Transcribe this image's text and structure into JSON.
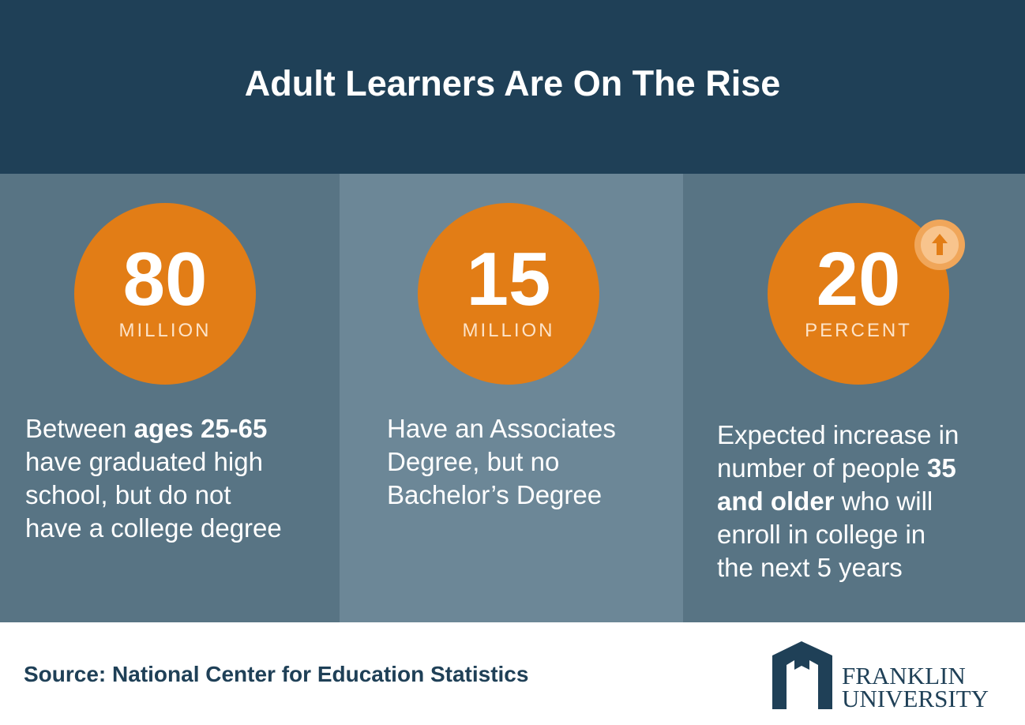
{
  "header": {
    "title": "Adult Learners Are On The Rise"
  },
  "panels": [
    {
      "number": "80",
      "unit": "MILLION",
      "arrow": false,
      "lines": [
        [
          {
            "text": "Between ",
            "bold": false
          },
          {
            "text": "ages 25-65",
            "bold": true
          }
        ],
        [
          {
            "text": "have graduated high",
            "bold": false
          }
        ],
        [
          {
            "text": "school, but do not",
            "bold": false
          }
        ],
        [
          {
            "text": "have a college degree",
            "bold": false
          }
        ]
      ]
    },
    {
      "number": "15",
      "unit": "MILLION",
      "arrow": false,
      "lines": [
        [
          {
            "text": "Have an Associates",
            "bold": false
          }
        ],
        [
          {
            "text": "Degree, but no",
            "bold": false
          }
        ],
        [
          {
            "text": "Bachelor’s Degree",
            "bold": false
          }
        ]
      ]
    },
    {
      "number": "20",
      "unit": "PERCENT",
      "arrow": true,
      "lines": [
        [
          {
            "text": "Expected increase in",
            "bold": false
          }
        ],
        [
          {
            "text": "number of people ",
            "bold": false
          },
          {
            "text": "35",
            "bold": true
          }
        ],
        [
          {
            "text": "and older",
            "bold": true
          },
          {
            "text": " who will",
            "bold": false
          }
        ],
        [
          {
            "text": "enroll in college in",
            "bold": false
          }
        ],
        [
          {
            "text": "the next 5 years",
            "bold": false
          }
        ]
      ]
    }
  ],
  "footer": {
    "source": "Source: National Center for Education Statistics",
    "logo": {
      "line1": "FRANKLIN",
      "line2": "UNIVERSITY"
    }
  }
}
